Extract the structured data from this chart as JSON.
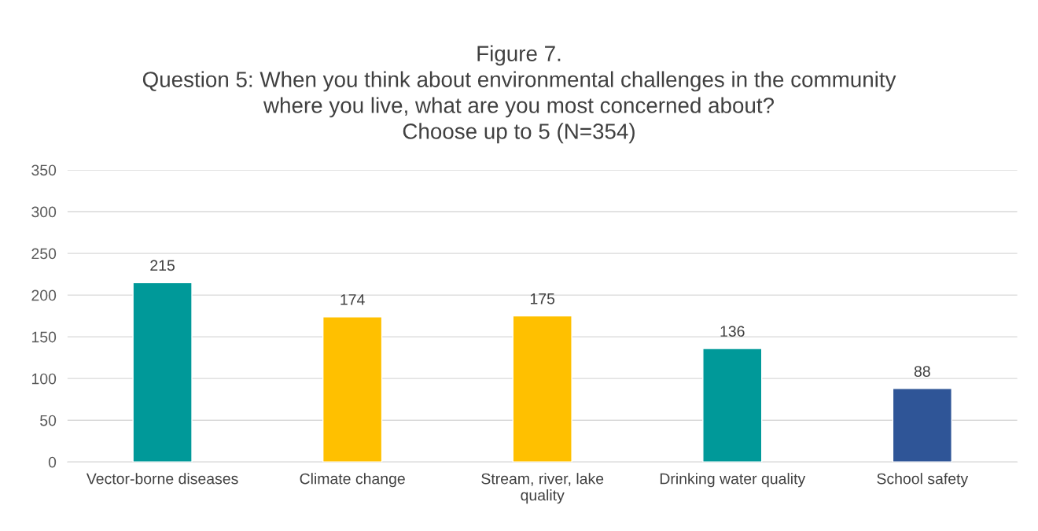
{
  "chart_data": {
    "type": "bar",
    "title": "Figure 7.\nQuestion 5: When you think about environmental challenges in the community\nwhere you live, what are you most concerned about?\nChoose up to 5 (N=354)",
    "categories": [
      "Vector-borne diseases",
      "Climate change",
      "Stream, river, lake\nquality",
      "Drinking water quality",
      "School safety"
    ],
    "values": [
      215,
      174,
      175,
      136,
      88
    ],
    "colors": [
      "#009999",
      "#ffc000",
      "#ffc000",
      "#009999",
      "#2f5597"
    ],
    "ylim": [
      0,
      350
    ],
    "yticks": [
      0,
      50,
      100,
      150,
      200,
      250,
      300,
      350
    ],
    "grid": "y",
    "data_labels": true
  }
}
